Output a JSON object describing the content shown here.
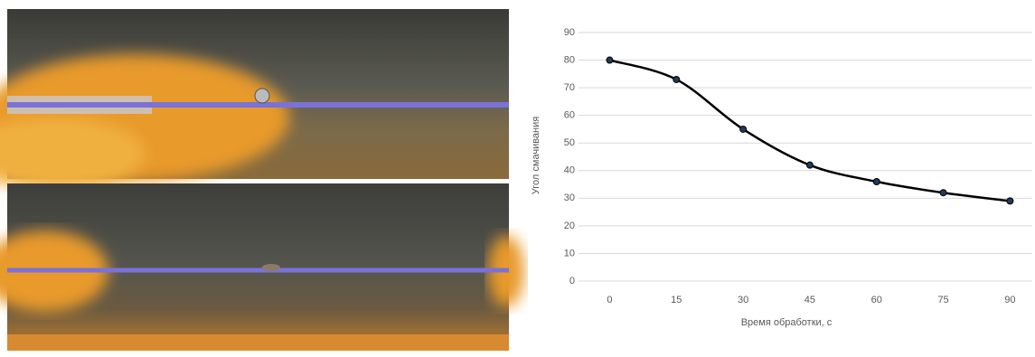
{
  "chart_data": {
    "type": "line",
    "x": [
      0,
      15,
      30,
      45,
      60,
      75,
      90
    ],
    "values": [
      80,
      73,
      55,
      42,
      36,
      32,
      29
    ],
    "color": "#000000",
    "marker_color": "#1f3b5a",
    "xlabel": "Время обработки, с",
    "ylabel": "Угол смачивания",
    "xlim": [
      -7,
      95
    ],
    "xticks": [
      0,
      15,
      30,
      45,
      60,
      75,
      90
    ],
    "ylim": [
      0,
      90
    ],
    "yticks": [
      0,
      10,
      20,
      30,
      40,
      50,
      60,
      70,
      80,
      90
    ],
    "grid": true,
    "smooth": true
  }
}
